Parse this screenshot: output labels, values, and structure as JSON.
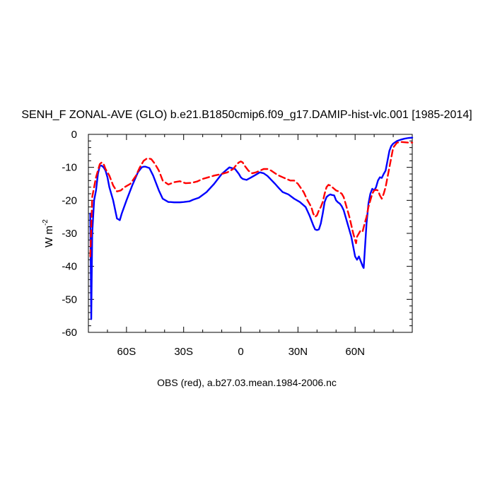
{
  "chart_data": {
    "type": "line",
    "title": "SENH_F ZONAL-AVE (GLO) b.e21.B1850cmip6.f09_g17.DAMIP-hist-vlc.001 [1985-2014]",
    "caption": "OBS (red), a.b27.03.mean.1984-2006.nc",
    "ylabel": "W m",
    "ylabel_sup": "-2",
    "xlim": [
      -80,
      90
    ],
    "ylim": [
      -60,
      0
    ],
    "grid": false,
    "x_ticks": [
      {
        "value": -60,
        "label": "60S"
      },
      {
        "value": -30,
        "label": "30S"
      },
      {
        "value": 0,
        "label": "0"
      },
      {
        "value": 30,
        "label": "30N"
      },
      {
        "value": 60,
        "label": "60N"
      }
    ],
    "y_ticks": [
      {
        "value": 0,
        "label": "0"
      },
      {
        "value": -10,
        "label": "-10"
      },
      {
        "value": -20,
        "label": "-20"
      },
      {
        "value": -30,
        "label": "-30"
      },
      {
        "value": -40,
        "label": "-40"
      },
      {
        "value": -50,
        "label": "-50"
      },
      {
        "value": -60,
        "label": "-60"
      }
    ],
    "series": [
      {
        "color": "#0000ff",
        "dash": "solid",
        "x": [
          -79,
          -78.5,
          -78,
          -77,
          -76,
          -75,
          -74,
          -73,
          -72,
          -71,
          -70,
          -69,
          -67,
          -65,
          -63.5,
          -62.5,
          -60,
          -57,
          -54,
          -52,
          -51,
          -50,
          -48,
          -46,
          -45,
          -43,
          -41,
          -38,
          -37,
          -35,
          -32,
          -30,
          -27,
          -25,
          -22,
          -18,
          -14,
          -10,
          -6,
          -3,
          -1,
          0,
          1,
          3,
          5,
          8,
          10,
          12,
          14,
          16,
          18,
          20,
          22,
          25,
          28,
          31,
          34,
          36,
          38,
          39,
          40,
          41,
          42,
          43,
          44,
          45,
          46,
          47,
          48,
          49,
          50,
          51,
          52,
          53,
          54,
          55,
          56,
          57,
          58,
          59,
          60,
          61,
          62,
          63,
          64,
          64.5,
          65,
          66,
          67,
          68,
          69,
          70,
          71,
          72,
          73,
          74,
          75,
          76,
          77,
          78,
          79,
          80,
          82,
          84,
          86,
          88,
          90
        ],
        "y": [
          -24,
          -56,
          -30,
          -20,
          -17,
          -12,
          -9.5,
          -9.5,
          -10,
          -11,
          -13,
          -16,
          -20,
          -25.5,
          -26,
          -24,
          -20,
          -15.5,
          -11.5,
          -10,
          -9.8,
          -9.8,
          -10.2,
          -12.5,
          -14,
          -17,
          -19.5,
          -20.5,
          -20.5,
          -20.6,
          -20.6,
          -20.5,
          -20.3,
          -19.8,
          -19.2,
          -17.5,
          -15,
          -12,
          -10,
          -10.5,
          -12,
          -13,
          -13.5,
          -13.8,
          -13.2,
          -12.2,
          -11.5,
          -11.8,
          -12.6,
          -13.8,
          -15,
          -16.3,
          -17.5,
          -18.2,
          -19.5,
          -20.5,
          -22,
          -24.5,
          -27.5,
          -28.8,
          -29,
          -28.8,
          -27,
          -24,
          -20.5,
          -19,
          -18.5,
          -18.2,
          -18.4,
          -18.5,
          -20,
          -20.6,
          -21,
          -21.8,
          -23,
          -25,
          -27,
          -29,
          -31,
          -34,
          -37,
          -38,
          -37,
          -38.5,
          -40,
          -40.5,
          -36,
          -27,
          -21,
          -18,
          -16.5,
          -17,
          -16,
          -14,
          -13,
          -13.2,
          -12,
          -11,
          -8,
          -5,
          -3.5,
          -2.8,
          -2,
          -1.6,
          -1.3,
          -1.1,
          -1
        ]
      },
      {
        "color": "#ff0000",
        "dash": "dashed",
        "x": [
          -79,
          -78.5,
          -78,
          -77,
          -76,
          -75,
          -74,
          -73,
          -72,
          -71,
          -70,
          -69,
          -67,
          -65,
          -63,
          -61,
          -58,
          -55,
          -53,
          -51,
          -49,
          -47,
          -45,
          -43,
          -41,
          -38,
          -35,
          -32,
          -29,
          -26,
          -23,
          -20,
          -17,
          -14,
          -10,
          -7,
          -4,
          -2,
          -1,
          0,
          1,
          2,
          4,
          6,
          8,
          10,
          12,
          14,
          16,
          18,
          20,
          22,
          24,
          26,
          28,
          30,
          33,
          35,
          37,
          38,
          39,
          40,
          41,
          42,
          43,
          44,
          45,
          46,
          47,
          48,
          49,
          50,
          51,
          52,
          53,
          54,
          55,
          56,
          57,
          58,
          59,
          60,
          60.5,
          61,
          62,
          63,
          64,
          65,
          66,
          67,
          68,
          69,
          70,
          71,
          72,
          73,
          74,
          75,
          76,
          77,
          78,
          79,
          80,
          82,
          84,
          86,
          88,
          90
        ],
        "y": [
          -37,
          -28,
          -19,
          -16,
          -13,
          -11,
          -9,
          -8.5,
          -9,
          -10.5,
          -11.5,
          -12.5,
          -15.5,
          -17.3,
          -17,
          -16,
          -15,
          -12.5,
          -10,
          -8,
          -7.2,
          -7.5,
          -9,
          -11,
          -14,
          -15.2,
          -14.5,
          -14.2,
          -14.8,
          -14.7,
          -14.3,
          -13.5,
          -13,
          -12.5,
          -12,
          -11.5,
          -10.5,
          -9,
          -8.5,
          -8.2,
          -8.5,
          -9.5,
          -11,
          -11.8,
          -11.5,
          -11,
          -10.5,
          -10.5,
          -11,
          -11.8,
          -12.5,
          -13,
          -13.5,
          -14,
          -14,
          -15,
          -17.5,
          -20,
          -22,
          -24,
          -25,
          -24.5,
          -23,
          -22,
          -20.5,
          -18,
          -16,
          -15.3,
          -15.5,
          -16,
          -16.5,
          -17,
          -17.2,
          -17.6,
          -18,
          -19,
          -21,
          -23,
          -25,
          -27.5,
          -30,
          -32,
          -33,
          -31,
          -30,
          -29,
          -29.3,
          -27,
          -25,
          -22,
          -20,
          -18,
          -17,
          -16.8,
          -17,
          -18.5,
          -19.5,
          -18,
          -16,
          -13,
          -10,
          -7,
          -4,
          -2.5,
          -2.3,
          -2.4,
          -2.5,
          -2.5
        ]
      }
    ]
  }
}
